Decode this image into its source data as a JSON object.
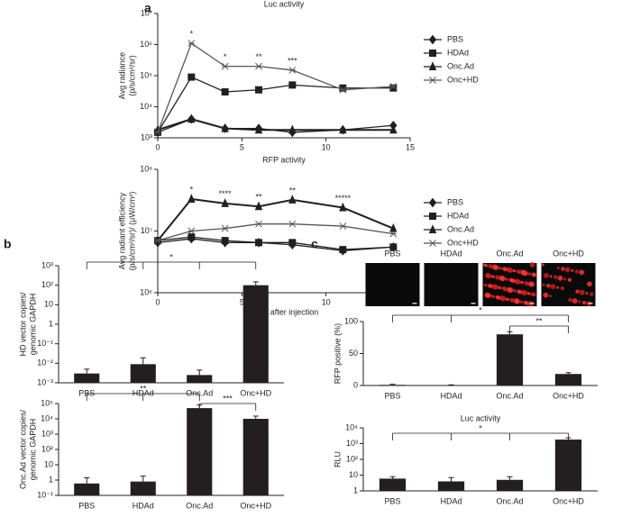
{
  "panels": [
    "a",
    "b",
    "c"
  ],
  "chart_data": [
    {
      "type": "line",
      "title": "Luc activity",
      "ylabel": [
        "Avg radiance",
        "(p/s/cm²/sr)"
      ],
      "ylog": true,
      "x": [
        0,
        2,
        4,
        6,
        8,
        11,
        14
      ],
      "xlim": [
        0,
        15
      ],
      "xticks": [
        0,
        5,
        10,
        15
      ],
      "ylim": [
        1000,
        10000000
      ],
      "yticks": [
        {
          "value": 1000,
          "label": "10³"
        },
        {
          "value": 10000,
          "label": "10⁴"
        },
        {
          "value": 100000,
          "label": "10⁵"
        },
        {
          "value": 1000000,
          "label": "10⁶"
        },
        {
          "value": 10000000,
          "label": "10⁷"
        }
      ],
      "series": [
        {
          "name": "PBS",
          "color": "#231f20",
          "marker": "diamond",
          "values": [
            1500,
            4000,
            2000,
            2000,
            1500,
            1800,
            2500
          ]
        },
        {
          "name": "HDAd",
          "color": "#231f20",
          "marker": "square",
          "values": [
            1500,
            90000,
            30000,
            35000,
            50000,
            40000,
            40000
          ]
        },
        {
          "name": "Onc.Ad",
          "color": "#231f20",
          "marker": "triangle",
          "values": [
            1800,
            4000,
            2000,
            1800,
            1800,
            1800,
            1800
          ]
        },
        {
          "name": "Onc+HD",
          "color": "#555555",
          "marker": "x",
          "values": [
            1500,
            1100000,
            200000,
            200000,
            150000,
            35000,
            45000
          ]
        }
      ],
      "annotations": [
        {
          "x": 2,
          "label": "*"
        },
        {
          "x": 4,
          "label": "*"
        },
        {
          "x": 6,
          "label": "**"
        },
        {
          "x": 8,
          "label": "***"
        }
      ]
    },
    {
      "type": "line",
      "title": "RFP activity",
      "ylabel": [
        "Avg radiant efficiency",
        "(p/s/cm²/sr)/ (µW/cm²)"
      ],
      "xlabel": "Days after injection",
      "ylog": true,
      "x": [
        0,
        2,
        4,
        6,
        8,
        11,
        14
      ],
      "xlim": [
        0,
        15
      ],
      "xticks": [
        0,
        5,
        10,
        15
      ],
      "ylim": [
        1000000,
        100000000
      ],
      "yticks": [
        {
          "value": 1000000,
          "label": "10⁶"
        },
        {
          "value": 10000000,
          "label": "10⁷"
        },
        {
          "value": 100000000,
          "label": "10⁸"
        }
      ],
      "series": [
        {
          "name": "PBS",
          "color": "#231f20",
          "marker": "diamond",
          "values": [
            6500000,
            7500000,
            6500000,
            6500000,
            6000000,
            4800000,
            5500000
          ]
        },
        {
          "name": "HDAd",
          "color": "#231f20",
          "marker": "square",
          "values": [
            7000000,
            8000000,
            7000000,
            6500000,
            6500000,
            5000000,
            5500000
          ]
        },
        {
          "name": "Onc.Ad",
          "color": "#231f20",
          "marker": "triangle",
          "values": [
            7000000,
            33000000,
            28000000,
            25000000,
            32000000,
            24000000,
            11000000
          ]
        },
        {
          "name": "Onc+HD",
          "color": "#555555",
          "marker": "x",
          "values": [
            7000000,
            10000000,
            11000000,
            13000000,
            13000000,
            12000000,
            9000000
          ]
        }
      ],
      "annotations": [
        {
          "x": 2,
          "label": "*"
        },
        {
          "x": 4,
          "label": "****"
        },
        {
          "x": 6,
          "label": "**"
        },
        {
          "x": 8,
          "label": "**"
        },
        {
          "x": 11,
          "label": "*****"
        }
      ]
    },
    {
      "type": "bar",
      "ylabel": [
        "HD vector copies/",
        "genomic GAPDH"
      ],
      "ylog": true,
      "color": "#231f20",
      "categories": [
        "PBS",
        "HDAd",
        "Onc.Ad",
        "Onc+HD"
      ],
      "values": [
        0.003,
        0.009,
        0.0025,
        100
      ],
      "errors": [
        0.002,
        0.01,
        0.002,
        50
      ],
      "ylim": [
        0.001,
        1000
      ],
      "yticks": [
        {
          "value": 0.001,
          "label": "10⁻³"
        },
        {
          "value": 0.01,
          "label": "10⁻²"
        },
        {
          "value": 0.1,
          "label": "10⁻¹"
        },
        1,
        10,
        {
          "value": 100,
          "label": "10²"
        },
        {
          "value": 1000,
          "label": "10³"
        }
      ],
      "annotations": [
        "*"
      ]
    },
    {
      "type": "bar",
      "ylabel": [
        "Onc.Ad vector copies/",
        "genomic GAPDH"
      ],
      "ylog": true,
      "color": "#231f20",
      "categories": [
        "PBS",
        "HDAd",
        "Onc.Ad",
        "Onc+HD"
      ],
      "values": [
        0.6,
        0.8,
        50000,
        10000
      ],
      "errors": [
        0.8,
        1,
        30000,
        5000
      ],
      "ylim": [
        0.1,
        100000
      ],
      "yticks": [
        {
          "value": 0.1,
          "label": "10⁻¹"
        },
        1,
        10,
        {
          "value": 100,
          "label": "10²"
        },
        {
          "value": 1000,
          "label": "10³"
        },
        {
          "value": 10000,
          "label": "10⁴"
        },
        {
          "value": 100000,
          "label": "10⁵"
        }
      ],
      "annotations": [
        "**",
        "***"
      ]
    },
    {
      "type": "images",
      "labels": [
        "PBS",
        "HDAd",
        "Onc.Ad",
        "Onc+HD"
      ]
    },
    {
      "type": "bar",
      "ylabel": [
        "RFP positive (%)"
      ],
      "ylog": false,
      "color": "#231f20",
      "categories": [
        "PBS",
        "HDAd",
        "Onc.Ad",
        "Onc+HD"
      ],
      "values": [
        1,
        0.5,
        80,
        18
      ],
      "errors": [
        1,
        0.5,
        4,
        2
      ],
      "ylim": [
        0,
        100
      ],
      "yticks": [
        0,
        50,
        100
      ],
      "annotations": [
        "*",
        "**"
      ]
    },
    {
      "type": "bar",
      "title": "Luc activity",
      "ylabel": [
        "RLU"
      ],
      "ylog": true,
      "color": "#231f20",
      "categories": [
        "PBS",
        "HDAd",
        "Onc.Ad",
        "Onc+HD"
      ],
      "values": [
        6,
        4,
        5,
        1800
      ],
      "errors": [
        2,
        3,
        3,
        500
      ],
      "ylim": [
        1,
        10000
      ],
      "yticks": [
        1,
        10,
        {
          "value": 100,
          "label": "10²"
        },
        {
          "value": 1000,
          "label": "10³"
        },
        {
          "value": 10000,
          "label": "10⁴"
        }
      ],
      "annotations": [
        "*"
      ]
    }
  ]
}
